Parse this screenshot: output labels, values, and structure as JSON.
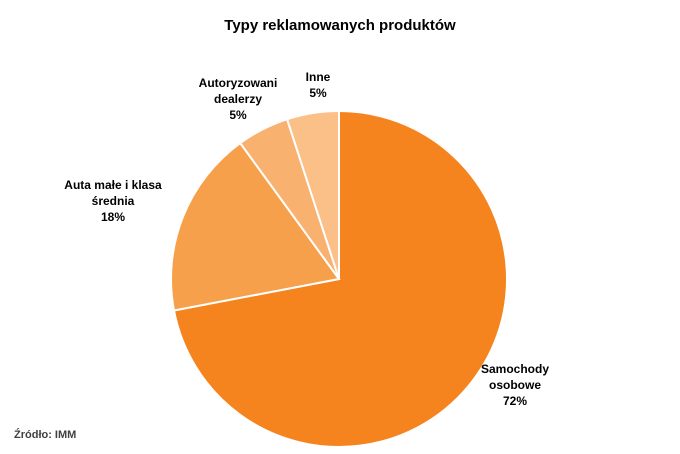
{
  "chart_data": {
    "type": "pie",
    "title": "Typy reklamowanych produktów",
    "slices": [
      {
        "label_lines": [
          "Samochody",
          "osobowe"
        ],
        "value_label": "72%",
        "value": 72,
        "color": "#f5841f"
      },
      {
        "label_lines": [
          "Auta małe i klasa",
          "średnia"
        ],
        "value_label": "18%",
        "value": 18,
        "color": "#f7a04b"
      },
      {
        "label_lines": [
          "Autoryzowani",
          "dealerzy"
        ],
        "value_label": "5%",
        "value": 5,
        "color": "#f9b170"
      },
      {
        "label_lines": [
          "Inne"
        ],
        "value_label": "5%",
        "value": 5,
        "color": "#fbbf88"
      }
    ],
    "start": "12 o'clock",
    "direction": "clockwise",
    "legend": "none"
  },
  "source": "Źródło: IMM"
}
